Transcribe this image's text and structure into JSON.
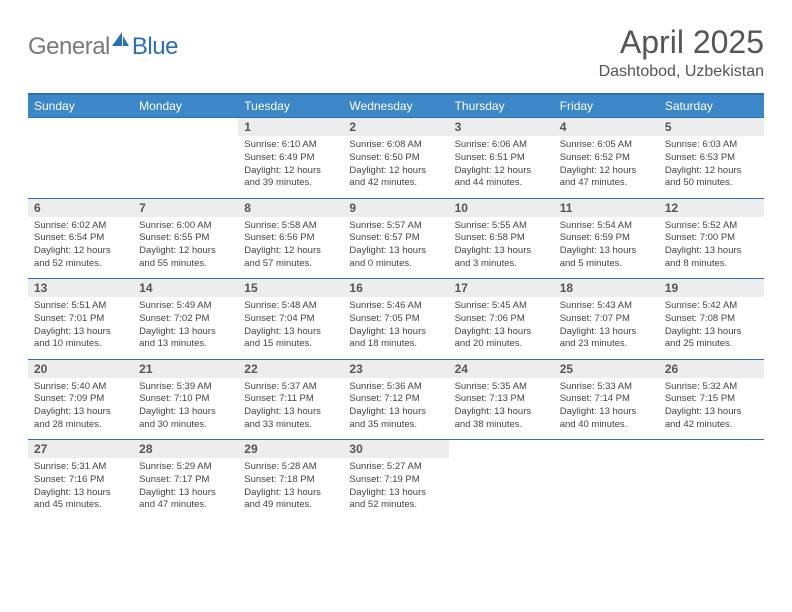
{
  "logo": {
    "general": "General",
    "blue": "Blue"
  },
  "title": "April 2025",
  "location": "Dashtobod, Uzbekistan",
  "weekdays": [
    "Sunday",
    "Monday",
    "Tuesday",
    "Wednesday",
    "Thursday",
    "Friday",
    "Saturday"
  ],
  "colors": {
    "header_blue": "#3b87c8",
    "border_blue": "#2d6fb5",
    "daynum_bg": "#ededed",
    "logo_gray": "#7a7a7a"
  },
  "weeks": [
    {
      "nums": [
        "",
        "",
        "1",
        "2",
        "3",
        "4",
        "5"
      ],
      "cells": [
        null,
        null,
        {
          "sunrise": "6:10 AM",
          "sunset": "6:49 PM",
          "daylight": "12 hours and 39 minutes."
        },
        {
          "sunrise": "6:08 AM",
          "sunset": "6:50 PM",
          "daylight": "12 hours and 42 minutes."
        },
        {
          "sunrise": "6:06 AM",
          "sunset": "6:51 PM",
          "daylight": "12 hours and 44 minutes."
        },
        {
          "sunrise": "6:05 AM",
          "sunset": "6:52 PM",
          "daylight": "12 hours and 47 minutes."
        },
        {
          "sunrise": "6:03 AM",
          "sunset": "6:53 PM",
          "daylight": "12 hours and 50 minutes."
        }
      ]
    },
    {
      "nums": [
        "6",
        "7",
        "8",
        "9",
        "10",
        "11",
        "12"
      ],
      "cells": [
        {
          "sunrise": "6:02 AM",
          "sunset": "6:54 PM",
          "daylight": "12 hours and 52 minutes."
        },
        {
          "sunrise": "6:00 AM",
          "sunset": "6:55 PM",
          "daylight": "12 hours and 55 minutes."
        },
        {
          "sunrise": "5:58 AM",
          "sunset": "6:56 PM",
          "daylight": "12 hours and 57 minutes."
        },
        {
          "sunrise": "5:57 AM",
          "sunset": "6:57 PM",
          "daylight": "13 hours and 0 minutes."
        },
        {
          "sunrise": "5:55 AM",
          "sunset": "6:58 PM",
          "daylight": "13 hours and 3 minutes."
        },
        {
          "sunrise": "5:54 AM",
          "sunset": "6:59 PM",
          "daylight": "13 hours and 5 minutes."
        },
        {
          "sunrise": "5:52 AM",
          "sunset": "7:00 PM",
          "daylight": "13 hours and 8 minutes."
        }
      ]
    },
    {
      "nums": [
        "13",
        "14",
        "15",
        "16",
        "17",
        "18",
        "19"
      ],
      "cells": [
        {
          "sunrise": "5:51 AM",
          "sunset": "7:01 PM",
          "daylight": "13 hours and 10 minutes."
        },
        {
          "sunrise": "5:49 AM",
          "sunset": "7:02 PM",
          "daylight": "13 hours and 13 minutes."
        },
        {
          "sunrise": "5:48 AM",
          "sunset": "7:04 PM",
          "daylight": "13 hours and 15 minutes."
        },
        {
          "sunrise": "5:46 AM",
          "sunset": "7:05 PM",
          "daylight": "13 hours and 18 minutes."
        },
        {
          "sunrise": "5:45 AM",
          "sunset": "7:06 PM",
          "daylight": "13 hours and 20 minutes."
        },
        {
          "sunrise": "5:43 AM",
          "sunset": "7:07 PM",
          "daylight": "13 hours and 23 minutes."
        },
        {
          "sunrise": "5:42 AM",
          "sunset": "7:08 PM",
          "daylight": "13 hours and 25 minutes."
        }
      ]
    },
    {
      "nums": [
        "20",
        "21",
        "22",
        "23",
        "24",
        "25",
        "26"
      ],
      "cells": [
        {
          "sunrise": "5:40 AM",
          "sunset": "7:09 PM",
          "daylight": "13 hours and 28 minutes."
        },
        {
          "sunrise": "5:39 AM",
          "sunset": "7:10 PM",
          "daylight": "13 hours and 30 minutes."
        },
        {
          "sunrise": "5:37 AM",
          "sunset": "7:11 PM",
          "daylight": "13 hours and 33 minutes."
        },
        {
          "sunrise": "5:36 AM",
          "sunset": "7:12 PM",
          "daylight": "13 hours and 35 minutes."
        },
        {
          "sunrise": "5:35 AM",
          "sunset": "7:13 PM",
          "daylight": "13 hours and 38 minutes."
        },
        {
          "sunrise": "5:33 AM",
          "sunset": "7:14 PM",
          "daylight": "13 hours and 40 minutes."
        },
        {
          "sunrise": "5:32 AM",
          "sunset": "7:15 PM",
          "daylight": "13 hours and 42 minutes."
        }
      ]
    },
    {
      "nums": [
        "27",
        "28",
        "29",
        "30",
        "",
        "",
        ""
      ],
      "cells": [
        {
          "sunrise": "5:31 AM",
          "sunset": "7:16 PM",
          "daylight": "13 hours and 45 minutes."
        },
        {
          "sunrise": "5:29 AM",
          "sunset": "7:17 PM",
          "daylight": "13 hours and 47 minutes."
        },
        {
          "sunrise": "5:28 AM",
          "sunset": "7:18 PM",
          "daylight": "13 hours and 49 minutes."
        },
        {
          "sunrise": "5:27 AM",
          "sunset": "7:19 PM",
          "daylight": "13 hours and 52 minutes."
        },
        null,
        null,
        null
      ]
    }
  ],
  "labels": {
    "sunrise": "Sunrise: ",
    "sunset": "Sunset: ",
    "daylight": "Daylight: "
  }
}
